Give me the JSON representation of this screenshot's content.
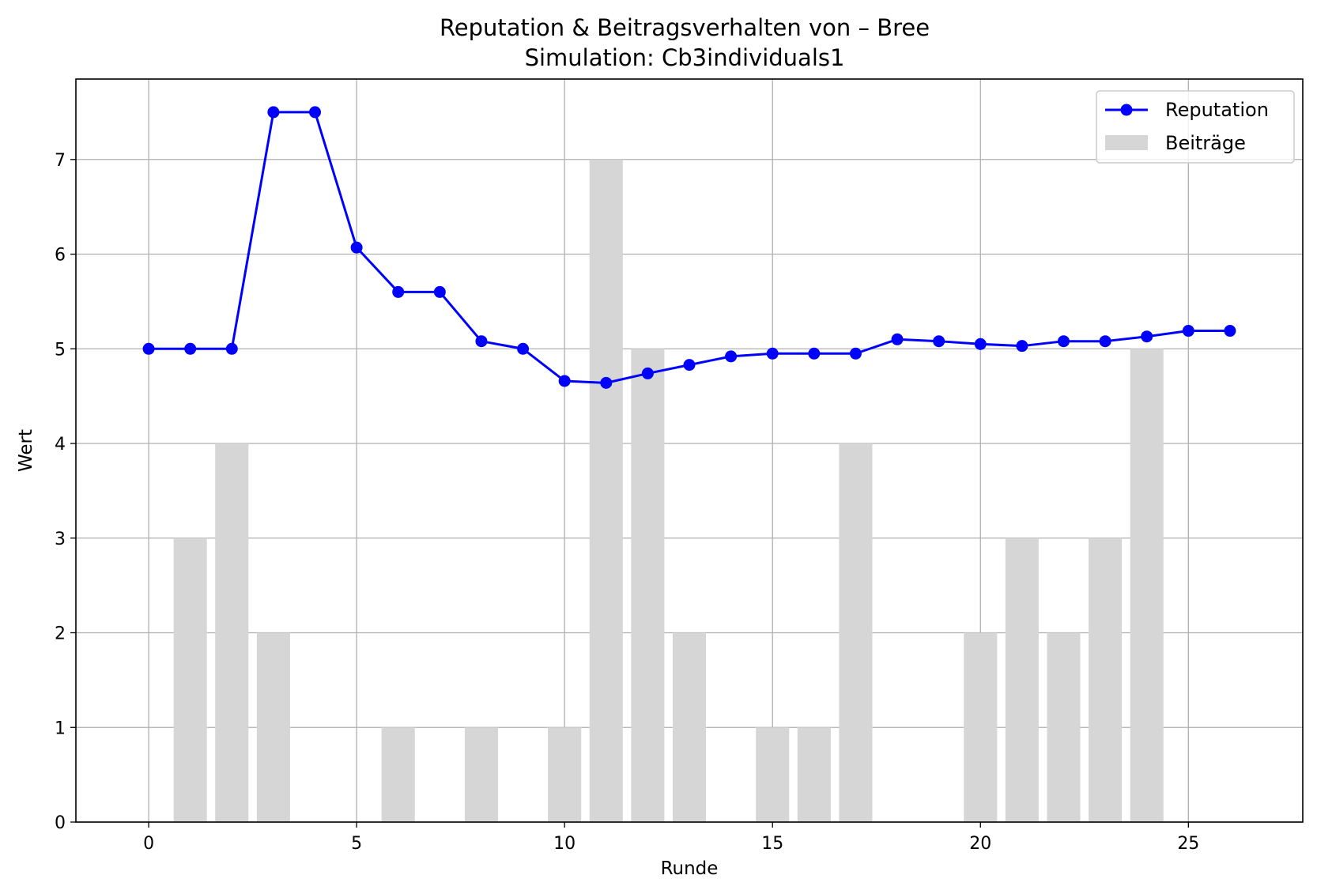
{
  "chart_data": {
    "type": "bar+line",
    "title": "Reputation & Beitragsverhalten von – Bree",
    "subtitle": "Simulation: Cb3individuals1",
    "xlabel": "Runde",
    "ylabel": "Wert",
    "xlim": [
      -1.75,
      27.75
    ],
    "ylim": [
      0,
      7.85
    ],
    "x_ticks": [
      0,
      5,
      10,
      15,
      20,
      25
    ],
    "y_ticks": [
      0,
      1,
      2,
      3,
      4,
      5,
      6,
      7
    ],
    "grid": true,
    "legend_position": "top-right",
    "series": [
      {
        "name": "Reputation",
        "kind": "line",
        "color": "#0000ff",
        "x": [
          0,
          1,
          2,
          3,
          4,
          5,
          6,
          7,
          8,
          9,
          10,
          11,
          12,
          13,
          14,
          15,
          16,
          17,
          18,
          19,
          20,
          21,
          22,
          23,
          24,
          25,
          26
        ],
        "values": [
          5.0,
          5.0,
          5.0,
          7.5,
          7.5,
          6.07,
          5.6,
          5.6,
          5.08,
          5.0,
          4.66,
          4.64,
          4.74,
          4.83,
          4.92,
          4.95,
          4.95,
          4.95,
          5.1,
          5.08,
          5.05,
          5.03,
          5.08,
          5.08,
          5.13,
          5.19,
          5.19
        ]
      },
      {
        "name": "Beiträge",
        "kind": "bar",
        "color": "#d6d6d6",
        "x": [
          0,
          1,
          2,
          3,
          4,
          5,
          6,
          7,
          8,
          9,
          10,
          11,
          12,
          13,
          14,
          15,
          16,
          17,
          18,
          19,
          20,
          21,
          22,
          23,
          24,
          25,
          26
        ],
        "values": [
          0,
          3,
          4,
          2,
          0,
          0,
          1,
          0,
          1,
          0,
          1,
          7,
          5,
          2,
          0,
          1,
          1,
          4,
          0,
          0,
          2,
          3,
          2,
          3,
          5,
          0,
          0
        ]
      }
    ]
  }
}
